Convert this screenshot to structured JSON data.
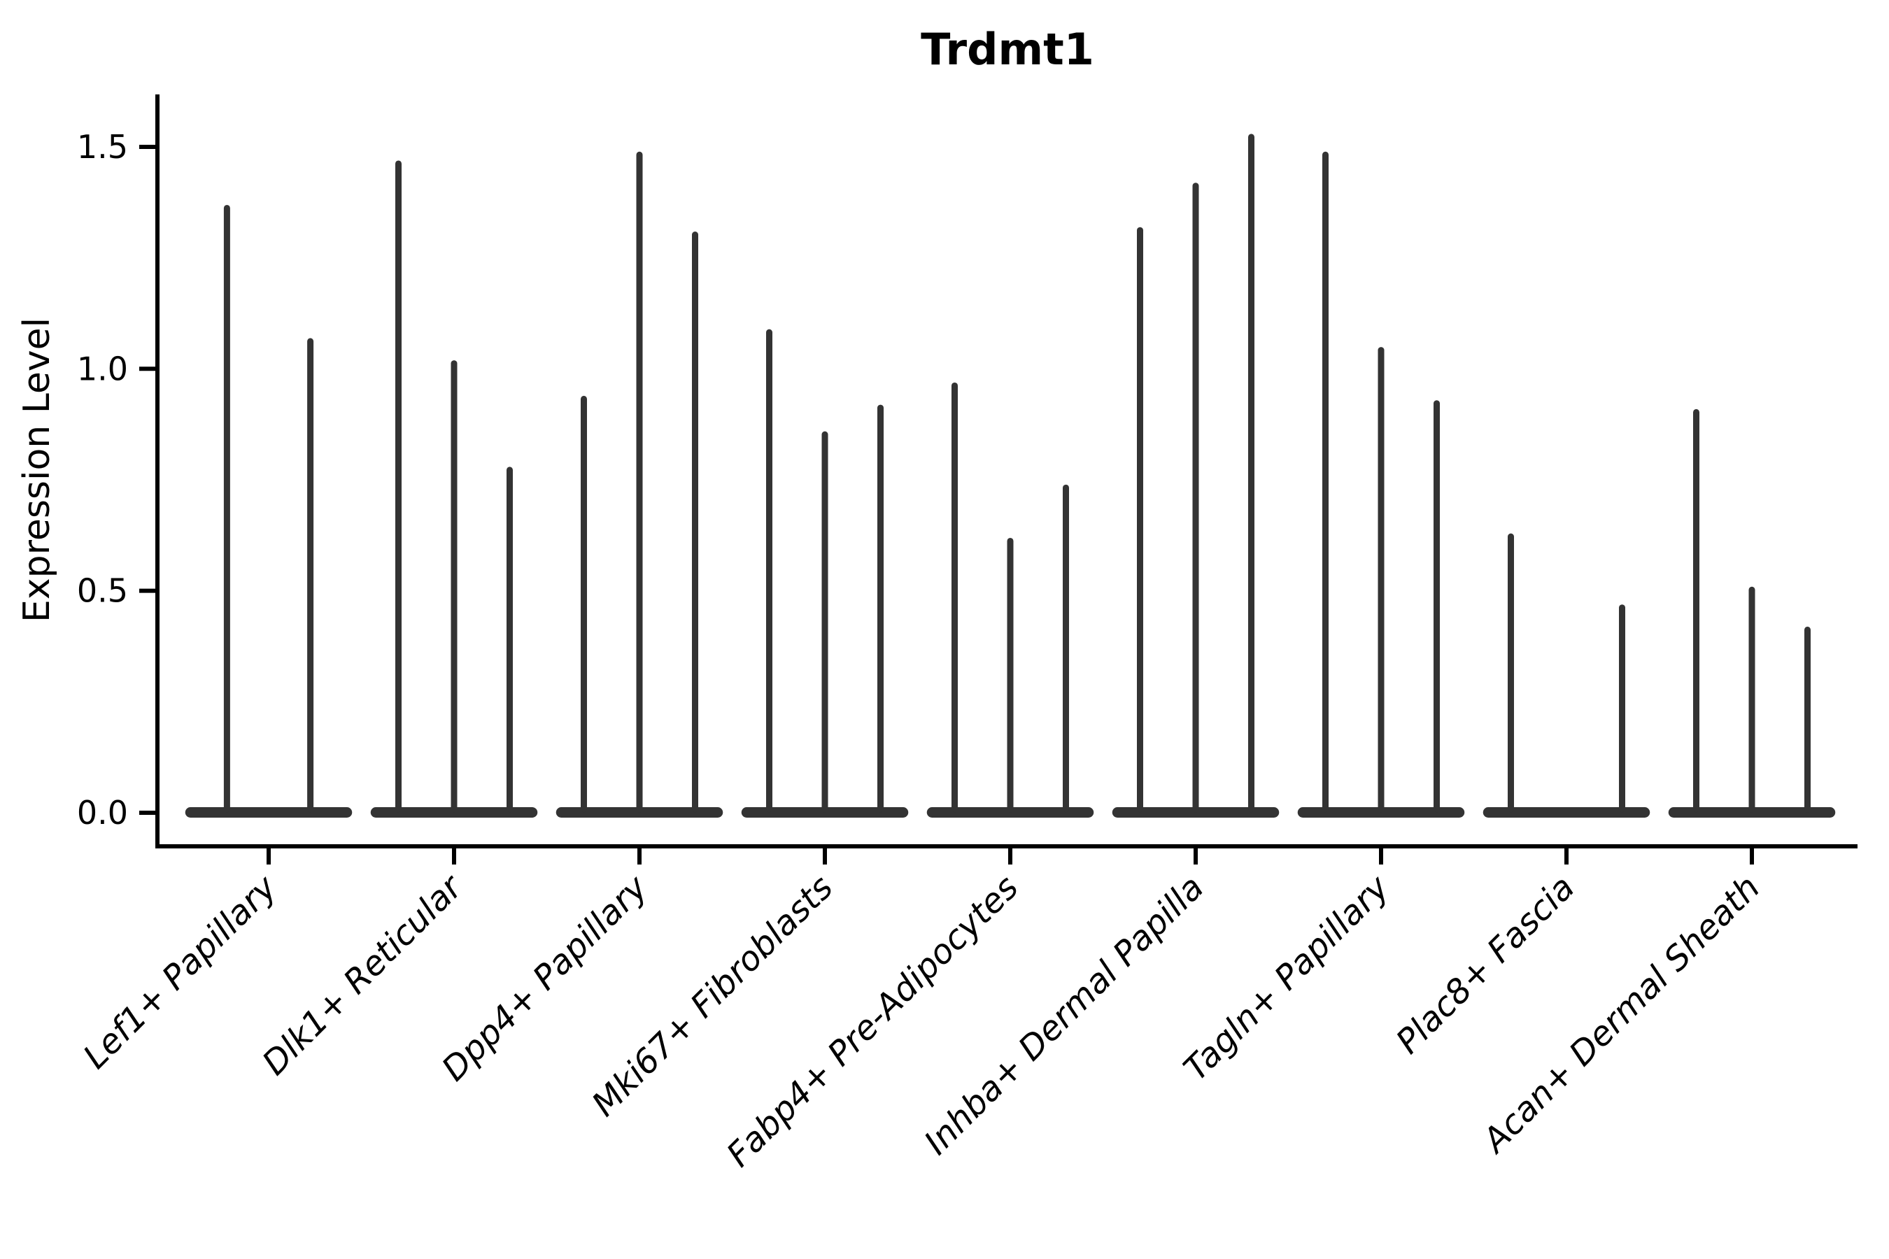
{
  "title": "Trdmt1",
  "y_axis": {
    "label": "Expression Level",
    "tick_labels": [
      "0.0",
      "0.5",
      "1.0",
      "1.5"
    ]
  },
  "colors": {
    "violin": "#333333",
    "axis": "#000000",
    "background": "#ffffff"
  },
  "chart_data": {
    "type": "violin",
    "title": "Trdmt1",
    "xlabel": "",
    "ylabel": "Expression Level",
    "ytick_values": [
      0.0,
      0.5,
      1.0,
      1.5
    ],
    "ytick_labels": [
      "0.0",
      "0.5",
      "1.0",
      "1.5"
    ],
    "ylim": [
      0,
      1.62
    ],
    "grid": false,
    "legend_position": "none",
    "xtick_label_rotation_deg": 45,
    "xtick_label_style": "italic",
    "categories": [
      "Lef1+ Papillary",
      "Dlk1+ Reticular",
      "Dpp4+ Papillary",
      "Mki67+ Fibroblasts",
      "Fabp4+ Pre-Adipocytes",
      "Inhba+ Dermal Papilla",
      "Tagln+ Papillary",
      "Plac8+ Fascia",
      "Acan+ Dermal Sheath"
    ],
    "series": [
      {
        "category": "Lef1+ Papillary",
        "violin_peaks": [
          1.37,
          1.07
        ]
      },
      {
        "category": "Dlk1+ Reticular",
        "violin_peaks": [
          1.47,
          1.02,
          0.78
        ]
      },
      {
        "category": "Dpp4+ Papillary",
        "violin_peaks": [
          0.94,
          1.49,
          1.31
        ]
      },
      {
        "category": "Mki67+ Fibroblasts",
        "violin_peaks": [
          1.09,
          0.86,
          0.92
        ]
      },
      {
        "category": "Fabp4+ Pre-Adipocytes",
        "violin_peaks": [
          0.97,
          0.62,
          0.74
        ]
      },
      {
        "category": "Inhba+ Dermal Papilla",
        "violin_peaks": [
          1.32,
          1.42,
          1.53
        ]
      },
      {
        "category": "Tagln+ Papillary",
        "violin_peaks": [
          1.49,
          1.05,
          0.93
        ]
      },
      {
        "category": "Plac8+ Fascia",
        "violin_peaks": [
          0.63,
          null,
          0.47
        ]
      },
      {
        "category": "Acan+ Dermal Sheath",
        "violin_peaks": [
          0.91,
          0.51,
          0.42
        ]
      }
    ],
    "violins_all_baseline_at": 0.0
  }
}
